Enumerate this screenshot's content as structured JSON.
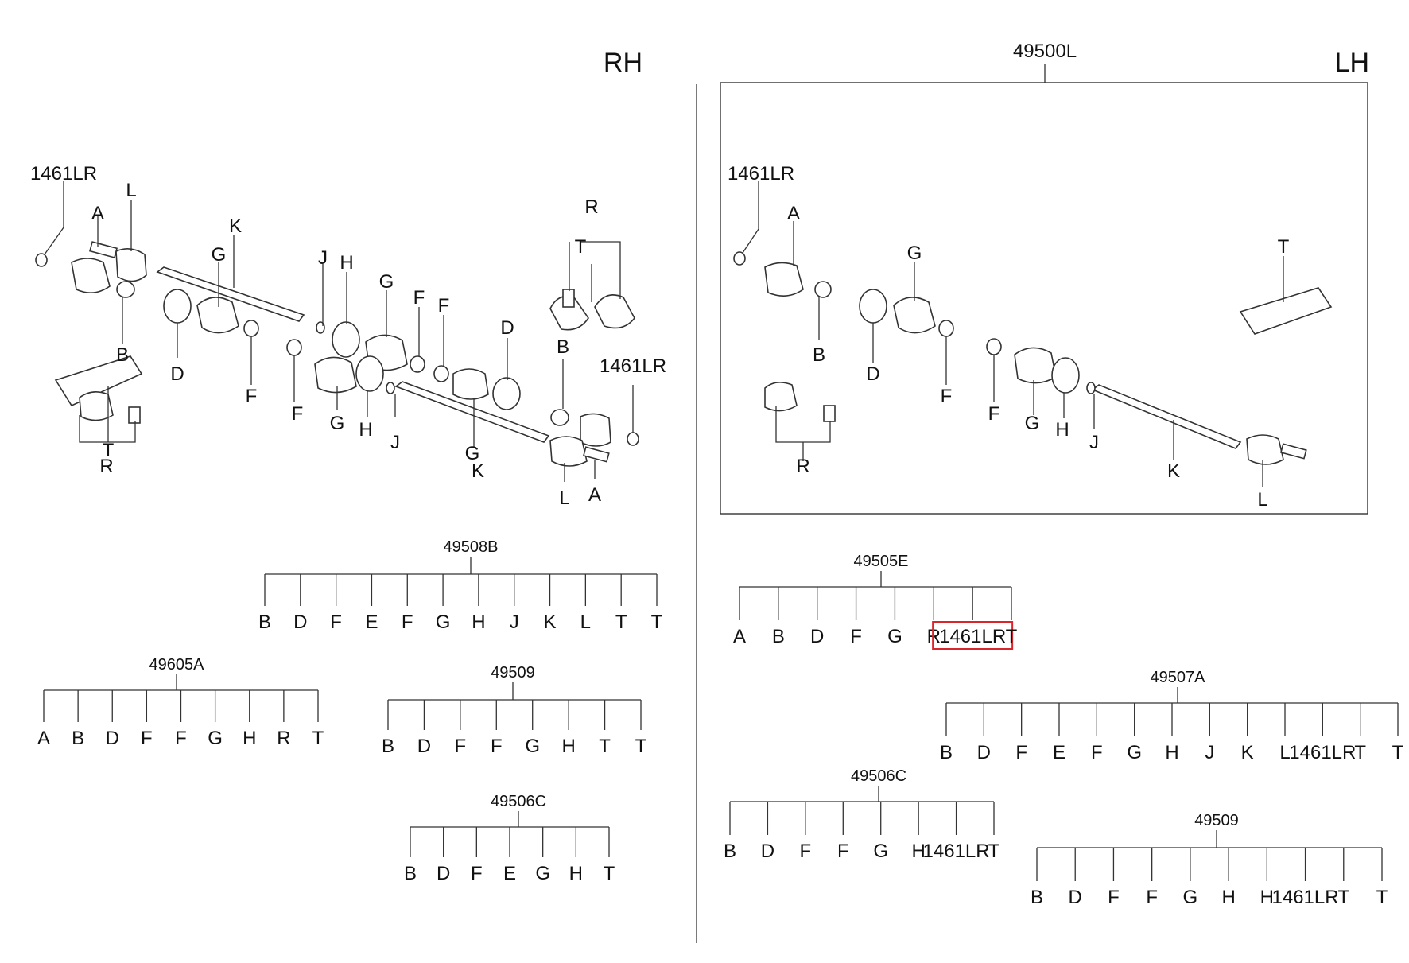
{
  "headers": {
    "rh": "RH",
    "lh": "LH",
    "assembly_lh": "49500L"
  },
  "rh_callouts": [
    "1461LR",
    "A",
    "L",
    "K",
    "G",
    "J",
    "H",
    "G",
    "F",
    "F",
    "D",
    "R",
    "T",
    "B",
    "D",
    "F",
    "F",
    "G",
    "H",
    "J",
    "G",
    "K",
    "L",
    "A",
    "B",
    "1461LR",
    "R",
    "T"
  ],
  "lh_callouts": [
    "1461LR",
    "A",
    "B",
    "D",
    "G",
    "F",
    "F",
    "G",
    "H",
    "J",
    "K",
    "L",
    "R",
    "T"
  ],
  "trees": [
    {
      "code": "49508B",
      "items": [
        "B",
        "D",
        "F",
        "E",
        "F",
        "G",
        "H",
        "J",
        "K",
        "L",
        "T",
        "T"
      ]
    },
    {
      "code": "49605A",
      "items": [
        "A",
        "B",
        "D",
        "F",
        "F",
        "G",
        "H",
        "R",
        "T"
      ]
    },
    {
      "code": "49509",
      "items": [
        "B",
        "D",
        "F",
        "F",
        "G",
        "H",
        "T",
        "T"
      ]
    },
    {
      "code": "49506C",
      "items": [
        "B",
        "D",
        "F",
        "E",
        "G",
        "H",
        "T"
      ]
    },
    {
      "code": "49505E",
      "items": [
        "A",
        "B",
        "D",
        "F",
        "G",
        "R",
        "1461LR",
        "T"
      ],
      "highlight": 6
    },
    {
      "code": "49507A",
      "items": [
        "B",
        "D",
        "F",
        "E",
        "F",
        "G",
        "H",
        "J",
        "K",
        "L",
        "1461LR",
        "T",
        "T"
      ]
    },
    {
      "code": "49506C",
      "items": [
        "B",
        "D",
        "F",
        "F",
        "G",
        "H",
        "1461LR",
        "T"
      ]
    },
    {
      "code": "49509",
      "items": [
        "B",
        "D",
        "F",
        "F",
        "G",
        "H",
        "H",
        "1461LR",
        "T",
        "T"
      ]
    }
  ],
  "colors": {
    "highlight": "#d9262b",
    "line": "#333333"
  }
}
